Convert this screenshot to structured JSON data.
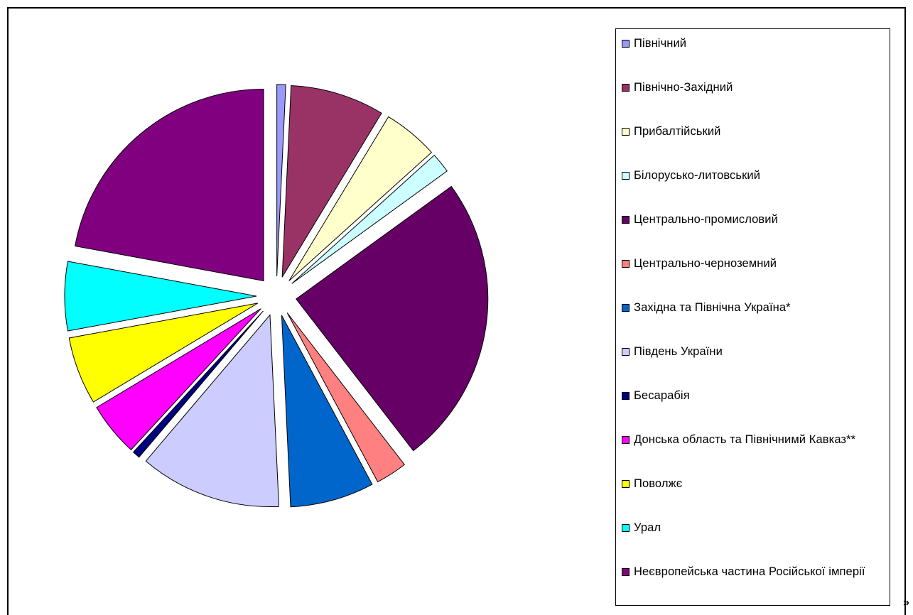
{
  "chart_data": {
    "type": "pie",
    "exploded": true,
    "legend_position": "right",
    "slices": [
      {
        "label": "Північний",
        "value": 0.7,
        "color": "#9999FF"
      },
      {
        "label": "Північно-Західний",
        "value": 7.5,
        "color": "#993366"
      },
      {
        "label": "Прибалтійський",
        "value": 4.4,
        "color": "#FFFFCC"
      },
      {
        "label": "Білорусько-литовський",
        "value": 1.6,
        "color": "#CCFFFF"
      },
      {
        "label": "Центрально-промисловий",
        "value": 23.2,
        "color": "#660066"
      },
      {
        "label": "Центрально-черноземний",
        "value": 2.5,
        "color": "#FF8080"
      },
      {
        "label": "Західна та Північна Україна*",
        "value": 6.7,
        "color": "#0066CC"
      },
      {
        "label": "Південь України",
        "value": 11.3,
        "color": "#CCCCFF"
      },
      {
        "label": "Бесарабія",
        "value": 0.6,
        "color": "#000080"
      },
      {
        "label": "Донська область та Північнимй Кавказ**",
        "value": 4.3,
        "color": "#FF00FF"
      },
      {
        "label": "Поволжє",
        "value": 5.4,
        "color": "#FFFF00"
      },
      {
        "label": "Урал",
        "value": 5.5,
        "color": "#00FFFF"
      },
      {
        "label": "Неєвропейська частина Російської імперії",
        "value": 20.9,
        "color": "#800080"
      }
    ]
  },
  "corner_mark": "»"
}
